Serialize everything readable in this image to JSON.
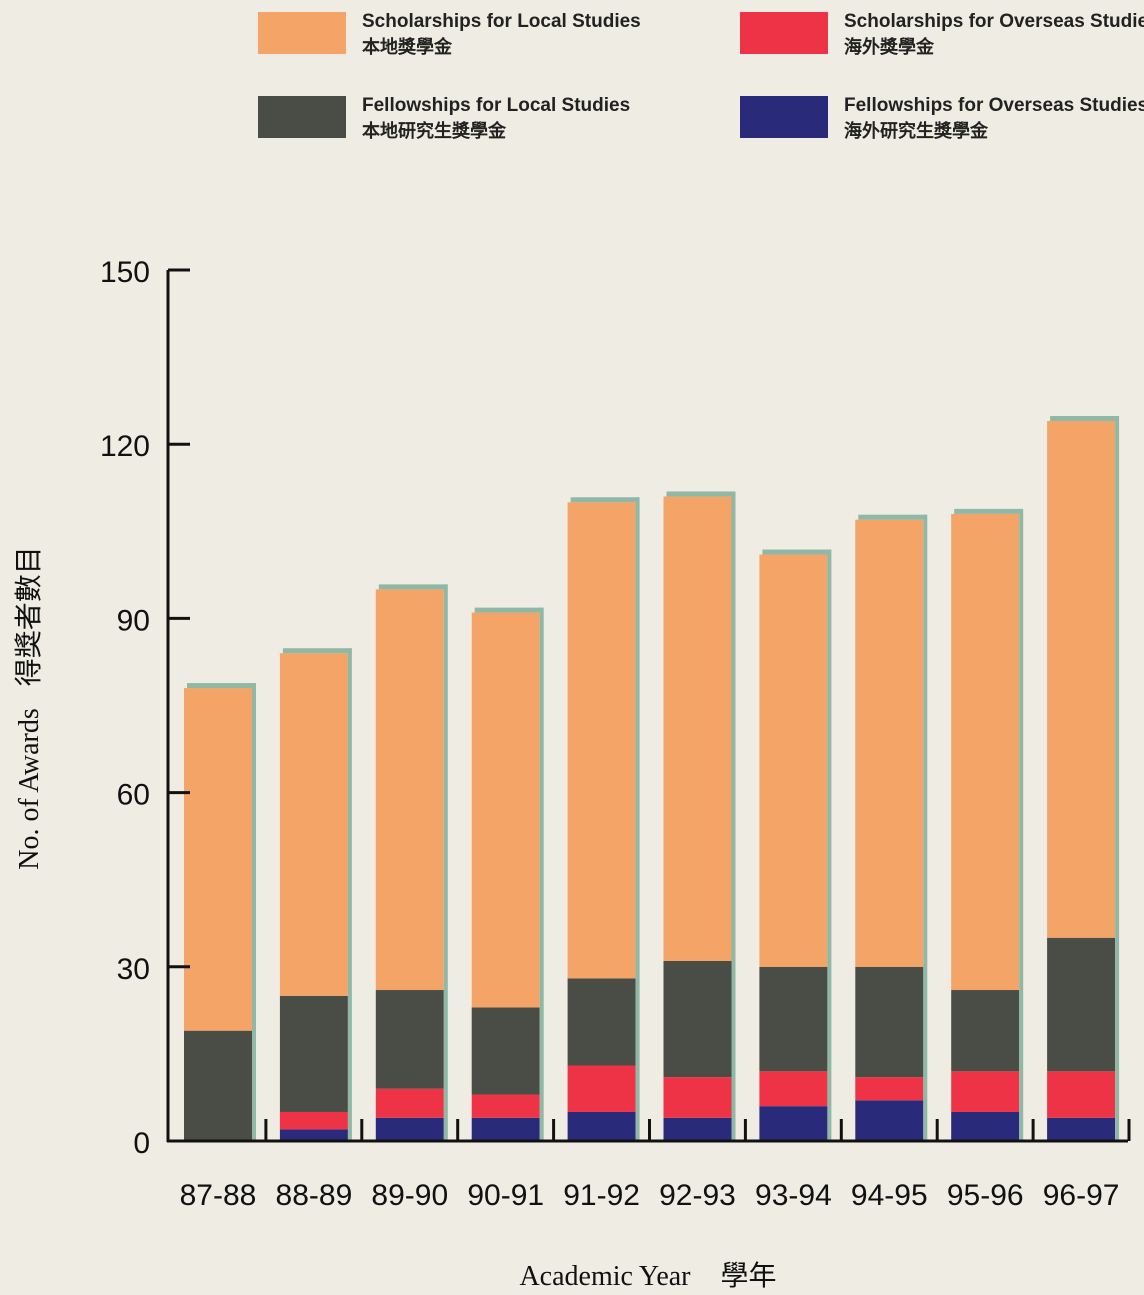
{
  "chart_data": {
    "type": "bar",
    "stacked": true,
    "categories": [
      "87-88",
      "88-89",
      "89-90",
      "90-91",
      "91-92",
      "92-93",
      "93-94",
      "94-95",
      "95-96",
      "96-97"
    ],
    "series": [
      {
        "name": "Fellowships for Overseas Studies",
        "name_zh": "海外研究生獎學金",
        "color": "#2a2a7a",
        "values": [
          0,
          2,
          4,
          4,
          5,
          4,
          6,
          7,
          5,
          4
        ]
      },
      {
        "name": "Scholarships for Overseas Studies",
        "name_zh": "海外獎學金",
        "color": "#ee3346",
        "values": [
          0,
          3,
          5,
          4,
          8,
          7,
          6,
          4,
          7,
          8
        ]
      },
      {
        "name": "Fellowships for Local Studies",
        "name_zh": "本地研究生獎學金",
        "color": "#4a4c46",
        "values": [
          19,
          20,
          17,
          15,
          15,
          20,
          18,
          19,
          14,
          23
        ]
      },
      {
        "name": "Scholarships for Local Studies",
        "name_zh": "本地獎學金",
        "color": "#f3a466",
        "values": [
          59,
          59,
          69,
          68,
          82,
          80,
          71,
          77,
          82,
          89
        ]
      }
    ],
    "yticks": [
      0,
      30,
      60,
      90,
      120,
      150
    ],
    "ylim": [
      0,
      150
    ],
    "ylabel": "No. of Awards",
    "ylabel_zh": "得獎者數目",
    "xlabel": "Academic Year",
    "xlabel_zh": "學年",
    "legend_position": "top",
    "grid": false
  }
}
